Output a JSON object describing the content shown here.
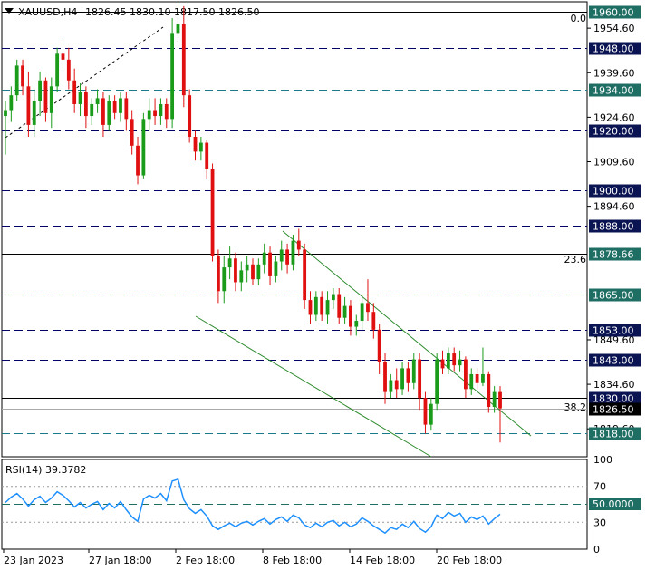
{
  "header": {
    "symbol": "XAUUSD,H4",
    "ohlc": "1826.45 1830.10 1817.50 1826.50",
    "menu_icon": "triangle-down-icon"
  },
  "chart_data": [
    {
      "type": "candlestick",
      "symbol": "XAUUSD",
      "timeframe": "H4",
      "ylim": [
        1810.2,
        1963.5
      ],
      "ytick_labels": [
        "1954.60",
        "1939.60",
        "1924.60",
        "1909.60",
        "1894.60",
        "1849.60",
        "1834.60",
        "1819.60"
      ],
      "ytick_values": [
        1954.6,
        1939.6,
        1924.6,
        1909.6,
        1894.6,
        1849.6,
        1834.6,
        1819.6
      ],
      "xtick_labels": [
        "23 Jan 2023",
        "27 Jan 18:00",
        "2 Feb 18:00",
        "8 Feb 18:00",
        "14 Feb 18:00",
        "20 Feb 18:00"
      ],
      "horizontal_levels": [
        {
          "label": "1960.00",
          "value": 1960.0,
          "style": "solid",
          "color": "#000000",
          "tag_bg": "#1f6e64"
        },
        {
          "label": "1948.00",
          "value": 1948.0,
          "style": "dash",
          "color": "#000066",
          "tag_bg": "#0b1452"
        },
        {
          "label": "1934.00",
          "value": 1934.0,
          "style": "dash",
          "color": "#1a7a8a",
          "tag_bg": "#1f6e64"
        },
        {
          "label": "1920.00",
          "value": 1920.0,
          "style": "dash",
          "color": "#000066",
          "tag_bg": "#0b1452"
        },
        {
          "label": "1900.00",
          "value": 1900.0,
          "style": "dash",
          "color": "#000066",
          "tag_bg": "#0b1452"
        },
        {
          "label": "1888.00",
          "value": 1888.0,
          "style": "dash",
          "color": "#000066",
          "tag_bg": "#0b1452"
        },
        {
          "label": "1878.66",
          "value": 1878.66,
          "style": "solid",
          "color": "#000000",
          "tag_bg": "#1f6e64"
        },
        {
          "label": "1865.00",
          "value": 1865.0,
          "style": "dash",
          "color": "#1a7a8a",
          "tag_bg": "#1f6e64"
        },
        {
          "label": "1853.00",
          "value": 1853.0,
          "style": "dash",
          "color": "#000066",
          "tag_bg": "#0b1452"
        },
        {
          "label": "1843.00",
          "value": 1843.0,
          "style": "dash",
          "color": "#000066",
          "tag_bg": "#0b1452"
        },
        {
          "label": "1830.00",
          "value": 1830.0,
          "style": "solid",
          "color": "#000000",
          "tag_bg": "#0b1452"
        },
        {
          "label": "1818.00",
          "value": 1818.0,
          "style": "dash",
          "color": "#1a7a8a",
          "tag_bg": "#1f6e64"
        }
      ],
      "current_price": {
        "label": "1826.50",
        "value": 1826.5
      },
      "fib_labels": [
        {
          "label": "0.0",
          "value": 1962.2
        },
        {
          "label": "23.6",
          "value": 1880.8
        },
        {
          "label": "38.2",
          "value": 1831.8
        }
      ],
      "candles": [
        {
          "o": 1925.0,
          "h": 1930.0,
          "l": 1912.0,
          "c": 1927.0
        },
        {
          "o": 1927.0,
          "h": 1935.0,
          "l": 1923.0,
          "c": 1932.0
        },
        {
          "o": 1932.0,
          "h": 1944.0,
          "l": 1930.0,
          "c": 1942.0
        },
        {
          "o": 1942.0,
          "h": 1944.0,
          "l": 1932.0,
          "c": 1935.0
        },
        {
          "o": 1935.0,
          "h": 1940.0,
          "l": 1918.0,
          "c": 1922.0
        },
        {
          "o": 1922.0,
          "h": 1934.0,
          "l": 1918.0,
          "c": 1930.0
        },
        {
          "o": 1930.0,
          "h": 1940.0,
          "l": 1925.0,
          "c": 1937.0
        },
        {
          "o": 1937.0,
          "h": 1938.0,
          "l": 1923.0,
          "c": 1926.0
        },
        {
          "o": 1926.0,
          "h": 1938.0,
          "l": 1921.0,
          "c": 1935.0
        },
        {
          "o": 1935.0,
          "h": 1948.0,
          "l": 1933.0,
          "c": 1946.0
        },
        {
          "o": 1946.0,
          "h": 1951.0,
          "l": 1940.0,
          "c": 1944.0
        },
        {
          "o": 1944.0,
          "h": 1948.0,
          "l": 1934.0,
          "c": 1937.0
        },
        {
          "o": 1937.0,
          "h": 1941.0,
          "l": 1926.0,
          "c": 1929.0
        },
        {
          "o": 1929.0,
          "h": 1936.0,
          "l": 1925.0,
          "c": 1933.0
        },
        {
          "o": 1933.0,
          "h": 1935.0,
          "l": 1921.0,
          "c": 1925.0
        },
        {
          "o": 1925.0,
          "h": 1931.0,
          "l": 1922.0,
          "c": 1929.0
        },
        {
          "o": 1929.0,
          "h": 1934.0,
          "l": 1926.0,
          "c": 1931.0
        },
        {
          "o": 1931.0,
          "h": 1933.0,
          "l": 1918.0,
          "c": 1922.0
        },
        {
          "o": 1922.0,
          "h": 1932.0,
          "l": 1920.0,
          "c": 1930.0
        },
        {
          "o": 1930.0,
          "h": 1932.0,
          "l": 1924.0,
          "c": 1926.0
        },
        {
          "o": 1926.0,
          "h": 1933.0,
          "l": 1923.0,
          "c": 1931.0
        },
        {
          "o": 1931.0,
          "h": 1933.0,
          "l": 1920.0,
          "c": 1924.0
        },
        {
          "o": 1924.0,
          "h": 1927.0,
          "l": 1912.0,
          "c": 1915.0
        },
        {
          "o": 1915.0,
          "h": 1918.0,
          "l": 1902.0,
          "c": 1905.0
        },
        {
          "o": 1905.0,
          "h": 1926.0,
          "l": 1904.0,
          "c": 1924.0
        },
        {
          "o": 1924.0,
          "h": 1931.0,
          "l": 1920.0,
          "c": 1927.0
        },
        {
          "o": 1927.0,
          "h": 1931.0,
          "l": 1922.0,
          "c": 1925.0
        },
        {
          "o": 1925.0,
          "h": 1931.0,
          "l": 1922.0,
          "c": 1929.0
        },
        {
          "o": 1929.0,
          "h": 1931.0,
          "l": 1921.0,
          "c": 1924.0
        },
        {
          "o": 1924.0,
          "h": 1958.0,
          "l": 1921.0,
          "c": 1953.0
        },
        {
          "o": 1953.0,
          "h": 1962.0,
          "l": 1950.0,
          "c": 1956.0
        },
        {
          "o": 1956.0,
          "h": 1962.0,
          "l": 1928.0,
          "c": 1932.0
        },
        {
          "o": 1932.0,
          "h": 1934.0,
          "l": 1916.0,
          "c": 1918.0
        },
        {
          "o": 1918.0,
          "h": 1920.0,
          "l": 1910.0,
          "c": 1913.0
        },
        {
          "o": 1913.0,
          "h": 1918.0,
          "l": 1910.0,
          "c": 1916.0
        },
        {
          "o": 1916.0,
          "h": 1917.0,
          "l": 1904.0,
          "c": 1907.0
        },
        {
          "o": 1907.0,
          "h": 1909.0,
          "l": 1876.0,
          "c": 1878.0
        },
        {
          "o": 1878.0,
          "h": 1880.0,
          "l": 1862.0,
          "c": 1866.0
        },
        {
          "o": 1866.0,
          "h": 1878.0,
          "l": 1862.0,
          "c": 1874.0
        },
        {
          "o": 1874.0,
          "h": 1881.0,
          "l": 1870.0,
          "c": 1877.0
        },
        {
          "o": 1877.0,
          "h": 1879.0,
          "l": 1866.0,
          "c": 1869.0
        },
        {
          "o": 1869.0,
          "h": 1876.0,
          "l": 1866.0,
          "c": 1873.0
        },
        {
          "o": 1873.0,
          "h": 1878.0,
          "l": 1869.0,
          "c": 1875.0
        },
        {
          "o": 1875.0,
          "h": 1877.0,
          "l": 1868.0,
          "c": 1870.0
        },
        {
          "o": 1870.0,
          "h": 1877.0,
          "l": 1868.0,
          "c": 1875.0
        },
        {
          "o": 1875.0,
          "h": 1882.0,
          "l": 1872.0,
          "c": 1879.0
        },
        {
          "o": 1879.0,
          "h": 1881.0,
          "l": 1868.0,
          "c": 1871.0
        },
        {
          "o": 1871.0,
          "h": 1878.0,
          "l": 1869.0,
          "c": 1876.0
        },
        {
          "o": 1876.0,
          "h": 1883.0,
          "l": 1873.0,
          "c": 1880.0
        },
        {
          "o": 1880.0,
          "h": 1882.0,
          "l": 1872.0,
          "c": 1875.0
        },
        {
          "o": 1875.0,
          "h": 1885.0,
          "l": 1873.0,
          "c": 1883.0
        },
        {
          "o": 1883.0,
          "h": 1887.0,
          "l": 1878.0,
          "c": 1880.0
        },
        {
          "o": 1880.0,
          "h": 1882.0,
          "l": 1860.0,
          "c": 1863.0
        },
        {
          "o": 1863.0,
          "h": 1866.0,
          "l": 1855.0,
          "c": 1858.0
        },
        {
          "o": 1858.0,
          "h": 1866.0,
          "l": 1856.0,
          "c": 1864.0
        },
        {
          "o": 1864.0,
          "h": 1866.0,
          "l": 1856.0,
          "c": 1858.0
        },
        {
          "o": 1858.0,
          "h": 1866.0,
          "l": 1855.0,
          "c": 1863.0
        },
        {
          "o": 1863.0,
          "h": 1867.0,
          "l": 1860.0,
          "c": 1865.0
        },
        {
          "o": 1865.0,
          "h": 1867.0,
          "l": 1855.0,
          "c": 1857.0
        },
        {
          "o": 1857.0,
          "h": 1864.0,
          "l": 1855.0,
          "c": 1861.0
        },
        {
          "o": 1861.0,
          "h": 1863.0,
          "l": 1851.0,
          "c": 1854.0
        },
        {
          "o": 1854.0,
          "h": 1858.0,
          "l": 1851.0,
          "c": 1856.0
        },
        {
          "o": 1856.0,
          "h": 1865.0,
          "l": 1853.0,
          "c": 1862.0
        },
        {
          "o": 1862.0,
          "h": 1870.0,
          "l": 1856.0,
          "c": 1859.0
        },
        {
          "o": 1859.0,
          "h": 1862.0,
          "l": 1850.0,
          "c": 1853.0
        },
        {
          "o": 1853.0,
          "h": 1855.0,
          "l": 1838.0,
          "c": 1842.0
        },
        {
          "o": 1842.0,
          "h": 1845.0,
          "l": 1828.0,
          "c": 1832.0
        },
        {
          "o": 1832.0,
          "h": 1838.0,
          "l": 1830.0,
          "c": 1836.0
        },
        {
          "o": 1836.0,
          "h": 1840.0,
          "l": 1830.0,
          "c": 1833.0
        },
        {
          "o": 1833.0,
          "h": 1842.0,
          "l": 1831.0,
          "c": 1840.0
        },
        {
          "o": 1840.0,
          "h": 1842.0,
          "l": 1832.0,
          "c": 1835.0
        },
        {
          "o": 1835.0,
          "h": 1845.0,
          "l": 1833.0,
          "c": 1843.0
        },
        {
          "o": 1843.0,
          "h": 1845.0,
          "l": 1826.0,
          "c": 1830.0
        },
        {
          "o": 1830.0,
          "h": 1832.0,
          "l": 1818.0,
          "c": 1821.0
        },
        {
          "o": 1821.0,
          "h": 1830.0,
          "l": 1819.0,
          "c": 1828.0
        },
        {
          "o": 1828.0,
          "h": 1845.0,
          "l": 1826.0,
          "c": 1843.0
        },
        {
          "o": 1843.0,
          "h": 1846.0,
          "l": 1838.0,
          "c": 1840.0
        },
        {
          "o": 1840.0,
          "h": 1847.0,
          "l": 1838.0,
          "c": 1845.0
        },
        {
          "o": 1845.0,
          "h": 1847.0,
          "l": 1839.0,
          "c": 1841.0
        },
        {
          "o": 1841.0,
          "h": 1846.0,
          "l": 1839.0,
          "c": 1843.0
        },
        {
          "o": 1843.0,
          "h": 1844.0,
          "l": 1830.0,
          "c": 1833.0
        },
        {
          "o": 1833.0,
          "h": 1840.0,
          "l": 1831.0,
          "c": 1838.0
        },
        {
          "o": 1838.0,
          "h": 1840.0,
          "l": 1833.0,
          "c": 1835.0
        },
        {
          "o": 1835.0,
          "h": 1847.0,
          "l": 1834.0,
          "c": 1838.0
        },
        {
          "o": 1838.0,
          "h": 1839.0,
          "l": 1825.0,
          "c": 1827.0
        },
        {
          "o": 1827.0,
          "h": 1834.0,
          "l": 1825.0,
          "c": 1832.0
        },
        {
          "o": 1832.0,
          "h": 1834.0,
          "l": 1815.0,
          "c": 1826.5
        }
      ]
    },
    {
      "type": "line",
      "indicator": "RSI(14)",
      "title": "RSI(14) 39.3782",
      "current_value": 39.3782,
      "ylim": [
        0,
        100
      ],
      "ytick_labels": [
        "100",
        "70",
        "30",
        "0"
      ],
      "ytick_values": [
        100,
        70,
        30,
        0
      ],
      "levels": [
        70,
        50,
        30
      ],
      "level_tag": "50.0000",
      "color": "#1e90ff",
      "values": [
        52,
        58,
        62,
        56,
        48,
        55,
        59,
        52,
        57,
        64,
        60,
        54,
        47,
        52,
        46,
        50,
        53,
        44,
        51,
        46,
        53,
        44,
        36,
        31,
        56,
        60,
        57,
        62,
        54,
        76,
        78,
        55,
        45,
        40,
        44,
        37,
        26,
        22,
        26,
        29,
        25,
        29,
        31,
        27,
        31,
        34,
        28,
        33,
        36,
        31,
        38,
        35,
        27,
        24,
        29,
        25,
        30,
        32,
        26,
        30,
        25,
        28,
        35,
        31,
        26,
        22,
        18,
        24,
        22,
        28,
        24,
        31,
        23,
        19,
        25,
        38,
        34,
        41,
        37,
        40,
        30,
        36,
        33,
        37,
        28,
        34,
        39
      ]
    }
  ]
}
